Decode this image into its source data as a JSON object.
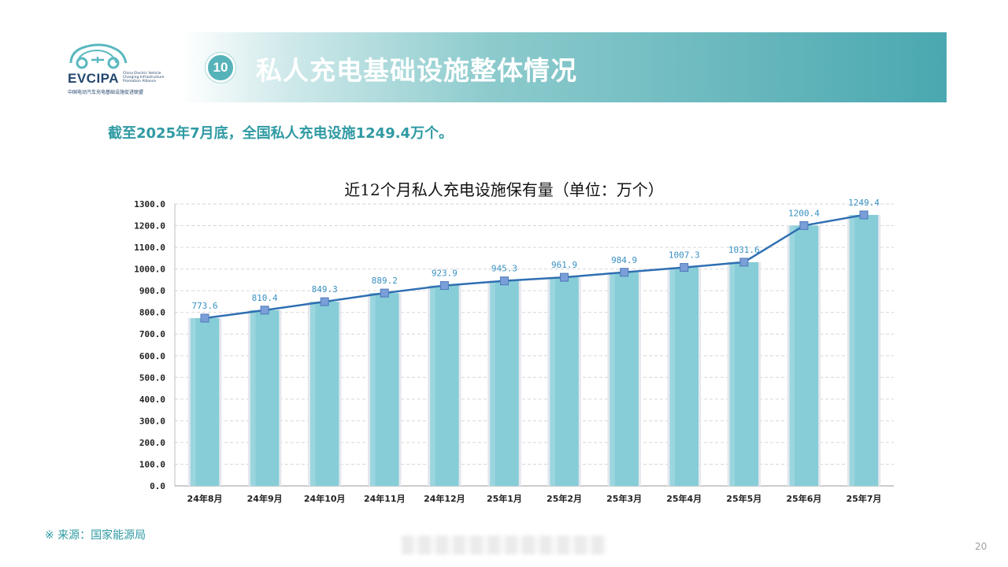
{
  "logo": {
    "name": "EVCIPA",
    "en_lines": [
      "China Electric Vehicle",
      "Charging Infrastructure",
      "Promotion Alliance"
    ],
    "cn": "中国电动汽车充电基础设施促进联盟"
  },
  "header": {
    "badge": "10",
    "title": "私人充电基础设施整体情况"
  },
  "summary": "截至2025年7月底，全国私人充电设施1249.4万个。",
  "source": "※  来源：国家能源局",
  "page_number": "20",
  "colors": {
    "bar": "#86cdd8",
    "line": "#2f6fb2",
    "marker": "#7a9fd8",
    "label": "#3a91c2",
    "accent": "#2f9aa3"
  },
  "chart_data": {
    "type": "bar",
    "title": "近12个月私人充电设施保有量（单位：万个）",
    "categories": [
      "24年8月",
      "24年9月",
      "24年10月",
      "24年11月",
      "24年12月",
      "25年1月",
      "25年2月",
      "25年3月",
      "25年4月",
      "25年5月",
      "25年6月",
      "25年7月"
    ],
    "values": [
      773.6,
      810.4,
      849.3,
      889.2,
      923.9,
      945.3,
      961.9,
      984.9,
      1007.3,
      1031.6,
      1200.4,
      1249.4
    ],
    "line_overlay": true,
    "ylim": [
      0,
      1300
    ],
    "ytick_step": 100,
    "ytick_labels": [
      "0.0",
      "100.0",
      "200.0",
      "300.0",
      "400.0",
      "500.0",
      "600.0",
      "700.0",
      "800.0",
      "900.0",
      "1000.0",
      "1100.0",
      "1200.0",
      "1300.0"
    ],
    "data_labels": [
      "773.6",
      "810.4",
      "849.3",
      "889.2",
      "923.9",
      "945.3",
      "961.9",
      "984.9",
      "1007.3",
      "1031.6",
      "1200.4",
      "1249.4"
    ],
    "grid": true,
    "xlabel": "",
    "ylabel": ""
  }
}
